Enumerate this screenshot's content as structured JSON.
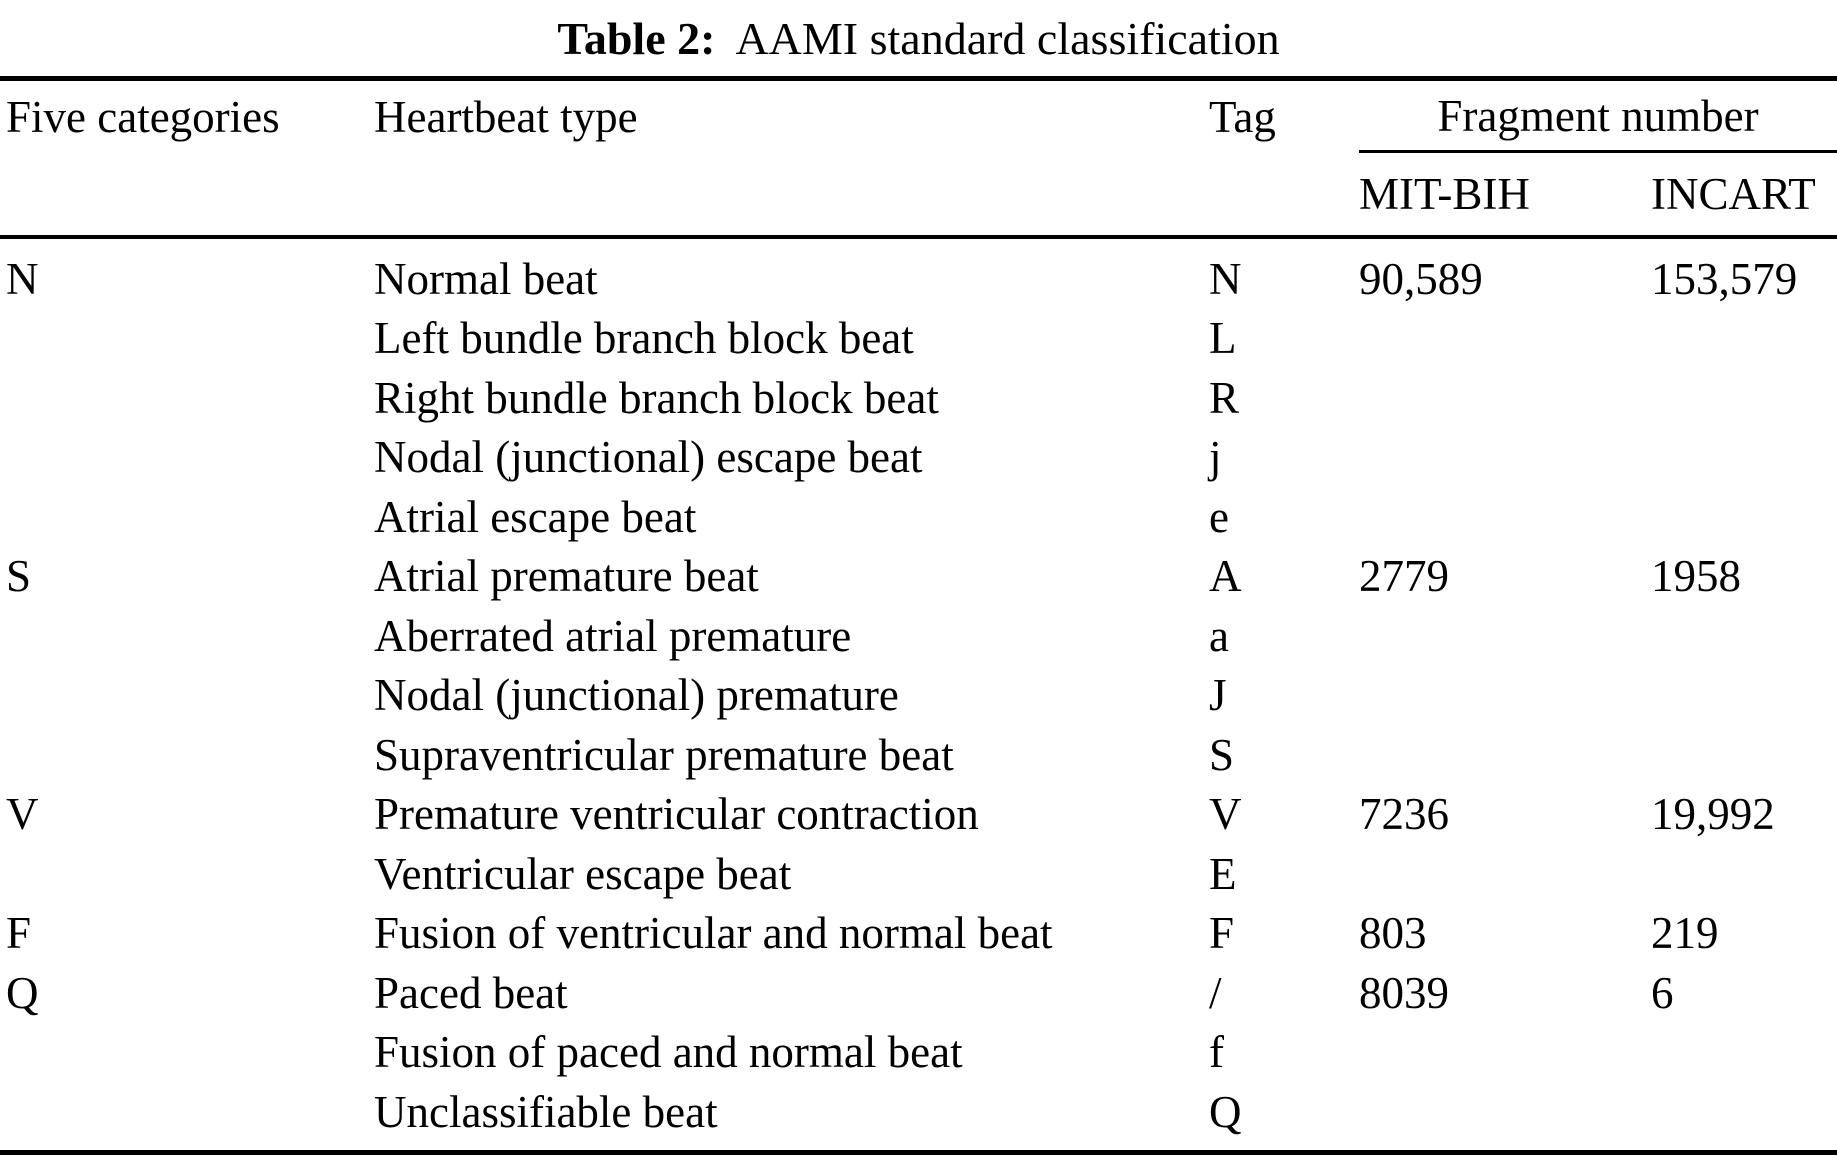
{
  "title": {
    "label": "Table 2:",
    "text": "AAMI standard classification"
  },
  "columns": {
    "five_categories": "Five categories",
    "heartbeat_type": "Heartbeat type",
    "tag": "Tag",
    "fragment_number": "Fragment number",
    "mit_bih": "MIT-BIH",
    "incart": "INCART"
  },
  "rows": [
    {
      "category": "N",
      "heartbeat_type": "Normal beat",
      "tag": "N",
      "mit_bih": "90,589",
      "incart": "153,579"
    },
    {
      "category": "",
      "heartbeat_type": "Left bundle branch block beat",
      "tag": "L",
      "mit_bih": "",
      "incart": ""
    },
    {
      "category": "",
      "heartbeat_type": "Right bundle branch block beat",
      "tag": "R",
      "mit_bih": "",
      "incart": ""
    },
    {
      "category": "",
      "heartbeat_type": "Nodal (junctional) escape beat",
      "tag": "j",
      "mit_bih": "",
      "incart": ""
    },
    {
      "category": "",
      "heartbeat_type": "Atrial escape beat",
      "tag": "e",
      "mit_bih": "",
      "incart": ""
    },
    {
      "category": "S",
      "heartbeat_type": "Atrial premature beat",
      "tag": "A",
      "mit_bih": "2779",
      "incart": "1958"
    },
    {
      "category": "",
      "heartbeat_type": "Aberrated atrial premature",
      "tag": "a",
      "mit_bih": "",
      "incart": ""
    },
    {
      "category": "",
      "heartbeat_type": "Nodal (junctional) premature",
      "tag": "J",
      "mit_bih": "",
      "incart": ""
    },
    {
      "category": "",
      "heartbeat_type": "Supraventricular premature beat",
      "tag": "S",
      "mit_bih": "",
      "incart": ""
    },
    {
      "category": "V",
      "heartbeat_type": "Premature ventricular contraction",
      "tag": "V",
      "mit_bih": "7236",
      "incart": "19,992"
    },
    {
      "category": "",
      "heartbeat_type": "Ventricular escape beat",
      "tag": "E",
      "mit_bih": "",
      "incart": ""
    },
    {
      "category": "F",
      "heartbeat_type": "Fusion of ventricular and normal beat",
      "tag": "F",
      "mit_bih": "803",
      "incart": "219"
    },
    {
      "category": "Q",
      "heartbeat_type": "Paced beat",
      "tag": "/",
      "mit_bih": "8039",
      "incart": "6"
    },
    {
      "category": "",
      "heartbeat_type": "Fusion of paced and normal beat",
      "tag": "f",
      "mit_bih": "",
      "incart": ""
    },
    {
      "category": "",
      "heartbeat_type": "Unclassifiable beat",
      "tag": "Q",
      "mit_bih": "",
      "incart": ""
    }
  ]
}
